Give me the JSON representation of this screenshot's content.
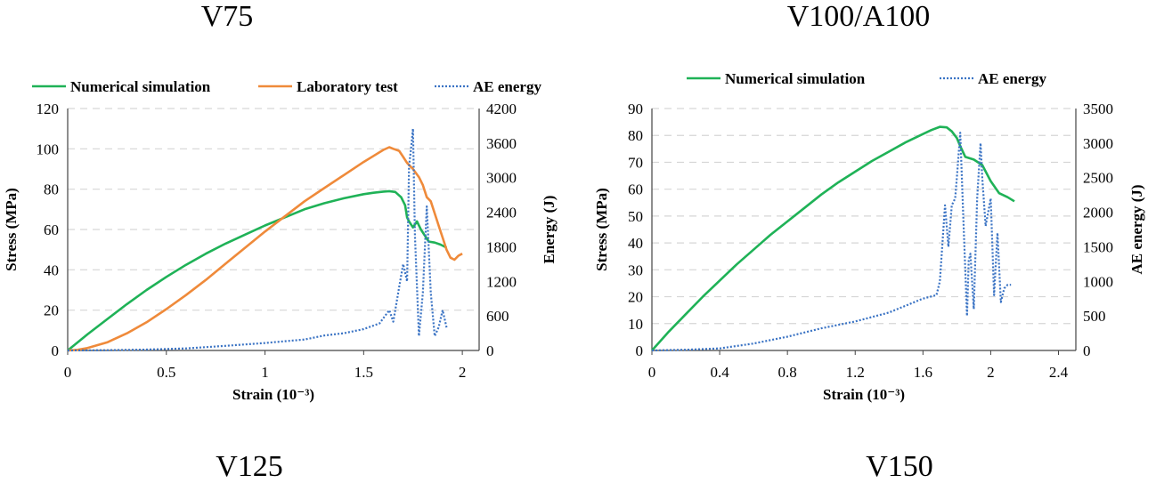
{
  "captions": {
    "top_left": "V75",
    "top_right": "V100/A100",
    "bottom_left": "V125",
    "bottom_right": "V150"
  },
  "colors": {
    "numerical": "#1fb257",
    "laboratory": "#ef8a3a",
    "ae": "#3a73c4",
    "grid": "#d6d6d6"
  },
  "chart_data": [
    {
      "type": "line",
      "title": "V75",
      "xlabel": "Strain (10⁻³)",
      "ylabel": "Stress (MPa)",
      "y2label": "Energy (J)",
      "xlim": [
        0,
        2.0
      ],
      "ylim": [
        0,
        120
      ],
      "y2lim": [
        0,
        4200
      ],
      "xticks": [
        "0",
        "0.5",
        "1",
        "1.5",
        "2"
      ],
      "xtick_values": [
        0,
        0.5,
        1,
        1.5,
        2
      ],
      "yticks": [
        "0",
        "20",
        "40",
        "60",
        "80",
        "100",
        "120"
      ],
      "ytick_values": [
        0,
        20,
        40,
        60,
        80,
        100,
        120
      ],
      "y2ticks": [
        "0",
        "600",
        "1200",
        "1800",
        "2400",
        "3000",
        "3600",
        "4200"
      ],
      "y2tick_values": [
        0,
        600,
        1200,
        1800,
        2400,
        3000,
        3600,
        4200
      ],
      "legend": [
        "Numerical simulation",
        "Laboratory test",
        "AE energy"
      ],
      "series": [
        {
          "name": "Numerical simulation",
          "axis": "left",
          "style": "solid",
          "color_key": "numerical",
          "x": [
            0,
            0.1,
            0.2,
            0.3,
            0.4,
            0.5,
            0.6,
            0.7,
            0.8,
            0.9,
            1.0,
            1.1,
            1.2,
            1.3,
            1.4,
            1.5,
            1.55,
            1.6,
            1.63,
            1.66,
            1.69,
            1.71,
            1.72,
            1.73,
            1.75,
            1.77,
            1.79,
            1.81,
            1.83,
            1.86,
            1.89,
            1.92
          ],
          "values": [
            0,
            8,
            15.5,
            23,
            30,
            36.5,
            42.5,
            48,
            53,
            57.5,
            62,
            66,
            70,
            73,
            75.5,
            77.5,
            78.2,
            78.8,
            79,
            78.6,
            76,
            72,
            66,
            64,
            61,
            64,
            60,
            57,
            54,
            53.5,
            52.5,
            51
          ]
        },
        {
          "name": "Laboratory test",
          "axis": "left",
          "style": "solid",
          "color_key": "laboratory",
          "x": [
            0,
            0.05,
            0.1,
            0.2,
            0.3,
            0.4,
            0.5,
            0.6,
            0.7,
            0.8,
            0.9,
            1.0,
            1.1,
            1.2,
            1.3,
            1.4,
            1.5,
            1.55,
            1.6,
            1.63,
            1.65,
            1.68,
            1.7,
            1.72,
            1.75,
            1.78,
            1.8,
            1.82,
            1.84,
            1.86,
            1.88,
            1.9,
            1.92,
            1.94,
            1.96,
            1.98,
            2.0
          ],
          "values": [
            0,
            0.3,
            1.2,
            4,
            8.5,
            14,
            20.5,
            27.5,
            35,
            43,
            51,
            59,
            66.5,
            74,
            80.5,
            87,
            93.5,
            96.5,
            99.5,
            100.8,
            100,
            99,
            96,
            93,
            90,
            86,
            82,
            76,
            74,
            68,
            62,
            56,
            50,
            46,
            45,
            47,
            48
          ]
        },
        {
          "name": "AE energy",
          "axis": "right",
          "style": "dotted",
          "color_key": "ae",
          "x": [
            0,
            0.2,
            0.4,
            0.6,
            0.8,
            1.0,
            1.2,
            1.3,
            1.4,
            1.5,
            1.58,
            1.63,
            1.65,
            1.68,
            1.7,
            1.72,
            1.73,
            1.74,
            1.75,
            1.76,
            1.78,
            1.8,
            1.82,
            1.84,
            1.86,
            1.88,
            1.9,
            1.92
          ],
          "values": [
            0,
            5,
            15,
            35,
            80,
            130,
            190,
            260,
            300,
            370,
            470,
            700,
            500,
            1100,
            1500,
            1200,
            3200,
            3500,
            3850,
            2000,
            250,
            1000,
            2500,
            1000,
            250,
            400,
            700,
            400
          ]
        }
      ]
    },
    {
      "type": "line",
      "title": "V100/A100",
      "xlabel": "Strain (10⁻³)",
      "ylabel": "Stress (MPa)",
      "y2label": "AE energy (J)",
      "xlim": [
        0,
        2.4
      ],
      "ylim": [
        0,
        90
      ],
      "y2lim": [
        0,
        3500
      ],
      "xticks": [
        "0",
        "0.4",
        "0.8",
        "1.2",
        "1.6",
        "2",
        "2.4"
      ],
      "xtick_values": [
        0,
        0.4,
        0.8,
        1.2,
        1.6,
        2.0,
        2.4
      ],
      "yticks": [
        "0",
        "10",
        "20",
        "30",
        "40",
        "50",
        "60",
        "70",
        "80",
        "90"
      ],
      "ytick_values": [
        0,
        10,
        20,
        30,
        40,
        50,
        60,
        70,
        80,
        90
      ],
      "y2ticks": [
        "0",
        "500",
        "1000",
        "1500",
        "2000",
        "2500",
        "3000",
        "3500"
      ],
      "y2tick_values": [
        0,
        500,
        1000,
        1500,
        2000,
        2500,
        3000,
        3500
      ],
      "legend": [
        "Numerical simulation",
        "AE energy"
      ],
      "series": [
        {
          "name": "Numerical simulation",
          "axis": "left",
          "style": "solid",
          "color_key": "numerical",
          "x": [
            0,
            0.1,
            0.2,
            0.3,
            0.4,
            0.5,
            0.6,
            0.7,
            0.8,
            0.9,
            1.0,
            1.1,
            1.2,
            1.3,
            1.4,
            1.5,
            1.6,
            1.65,
            1.7,
            1.74,
            1.77,
            1.8,
            1.82,
            1.85,
            1.9,
            1.95,
            2.0,
            2.05,
            2.1,
            2.14
          ],
          "values": [
            0,
            7,
            13.5,
            20,
            26,
            32,
            37.5,
            43,
            48,
            53,
            58,
            62.5,
            66.5,
            70.5,
            74,
            77.5,
            80.5,
            82,
            83.2,
            83,
            81.5,
            79,
            76,
            72,
            71,
            69,
            63,
            58.5,
            57,
            55.5
          ]
        },
        {
          "name": "AE energy",
          "axis": "right",
          "style": "dotted",
          "color_key": "ae",
          "x": [
            0,
            0.2,
            0.4,
            0.6,
            0.8,
            1.0,
            1.2,
            1.4,
            1.6,
            1.68,
            1.7,
            1.73,
            1.75,
            1.77,
            1.79,
            1.8,
            1.82,
            1.84,
            1.86,
            1.87,
            1.88,
            1.9,
            1.92,
            1.94,
            1.95,
            1.97,
            2.0,
            2.02,
            2.04,
            2.06,
            2.08,
            2.1,
            2.12
          ],
          "values": [
            0,
            10,
            30,
            100,
            200,
            320,
            420,
            550,
            750,
            800,
            1000,
            2100,
            1500,
            2100,
            2200,
            2500,
            3150,
            1800,
            500,
            1300,
            1400,
            600,
            2200,
            3000,
            2500,
            1800,
            2200,
            800,
            1700,
            700,
            900,
            950,
            950
          ]
        }
      ]
    }
  ]
}
